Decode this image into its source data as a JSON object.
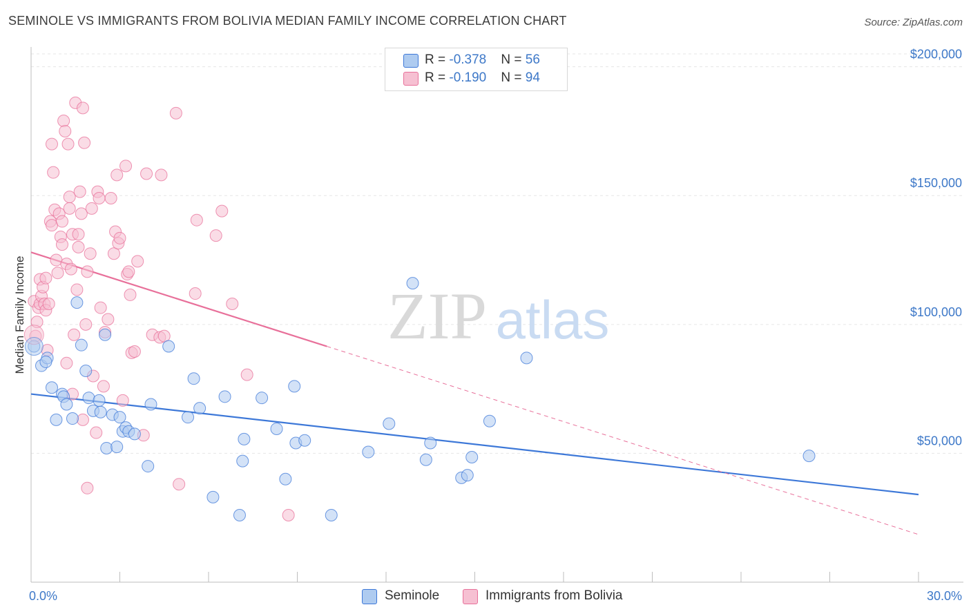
{
  "title": "SEMINOLE VS IMMIGRANTS FROM BOLIVIA MEDIAN FAMILY INCOME CORRELATION CHART",
  "source": "Source: ZipAtlas.com",
  "watermark": {
    "zip": "ZIP",
    "atlas": "atlas"
  },
  "legend": {
    "rows": [
      {
        "r_label": "R = ",
        "r_value": "-0.378",
        "n_label": "N = ",
        "n_value": "56"
      },
      {
        "r_label": "R = ",
        "r_value": "-0.190",
        "n_label": "N = ",
        "n_value": "94"
      }
    ]
  },
  "chart_data": {
    "type": "scatter",
    "title": "SEMINOLE VS IMMIGRANTS FROM BOLIVIA MEDIAN FAMILY INCOME CORRELATION CHART",
    "xlabel": "",
    "ylabel": "Median Family Income",
    "xlim": [
      0,
      30
    ],
    "ylim": [
      0,
      205000
    ],
    "x_tick_labels": [
      "0.0%",
      "30.0%"
    ],
    "y_ticks": [
      50000,
      100000,
      150000,
      200000
    ],
    "y_tick_labels": [
      "$50,000",
      "$100,000",
      "$150,000",
      "$200,000"
    ],
    "grid": true,
    "legend_position": "top-center",
    "colors": {
      "seminole": "#3d78d8",
      "bolivia": "#e8709a",
      "seminole_fill": "#aecbf0",
      "bolivia_fill": "#f6c0d2",
      "axis_text": "#3d78c8"
    },
    "series": [
      {
        "name": "Seminole",
        "r": -0.378,
        "n": 56,
        "trend": {
          "x": [
            0,
            30
          ],
          "y": [
            73000,
            34000
          ],
          "style": "solid"
        },
        "points": [
          [
            0.1,
            91500
          ],
          [
            0.35,
            84000
          ],
          [
            0.55,
            87000
          ],
          [
            0.5,
            85500
          ],
          [
            0.7,
            75500
          ],
          [
            0.85,
            63000
          ],
          [
            1.05,
            73000
          ],
          [
            1.1,
            72000
          ],
          [
            1.2,
            69000
          ],
          [
            1.4,
            63500
          ],
          [
            1.55,
            108500
          ],
          [
            1.7,
            92000
          ],
          [
            1.85,
            82000
          ],
          [
            1.95,
            71500
          ],
          [
            2.1,
            66500
          ],
          [
            2.3,
            70500
          ],
          [
            2.35,
            66000
          ],
          [
            2.5,
            96000
          ],
          [
            2.55,
            52000
          ],
          [
            2.75,
            65000
          ],
          [
            2.9,
            52500
          ],
          [
            3.0,
            64000
          ],
          [
            3.1,
            58500
          ],
          [
            3.2,
            60000
          ],
          [
            3.3,
            58500
          ],
          [
            3.5,
            57500
          ],
          [
            3.95,
            45000
          ],
          [
            4.05,
            69000
          ],
          [
            4.65,
            91500
          ],
          [
            5.3,
            64000
          ],
          [
            5.5,
            79000
          ],
          [
            5.7,
            67500
          ],
          [
            6.15,
            33000
          ],
          [
            6.55,
            72000
          ],
          [
            7.05,
            26000
          ],
          [
            7.15,
            47000
          ],
          [
            7.2,
            55500
          ],
          [
            7.8,
            71500
          ],
          [
            8.3,
            59500
          ],
          [
            8.6,
            40000
          ],
          [
            8.9,
            76000
          ],
          [
            8.95,
            54000
          ],
          [
            9.25,
            55000
          ],
          [
            10.15,
            26000
          ],
          [
            11.4,
            50500
          ],
          [
            12.1,
            61500
          ],
          [
            12.9,
            116000
          ],
          [
            13.35,
            47500
          ],
          [
            13.5,
            54000
          ],
          [
            14.55,
            40500
          ],
          [
            14.75,
            41500
          ],
          [
            14.9,
            48500
          ],
          [
            15.5,
            62500
          ],
          [
            16.75,
            87000
          ],
          [
            26.3,
            49000
          ]
        ]
      },
      {
        "name": "Immigrants from Bolivia",
        "r": -0.19,
        "n": 94,
        "trend": {
          "x": [
            0,
            10
          ],
          "y": [
            128000,
            91500
          ],
          "style": "solid",
          "extend_to": [
            30,
            18500
          ],
          "extend_style": "dashed"
        },
        "points": [
          [
            0.1,
            109000
          ],
          [
            0.15,
            95500
          ],
          [
            0.2,
            101000
          ],
          [
            0.25,
            106500
          ],
          [
            0.3,
            108000
          ],
          [
            0.3,
            117500
          ],
          [
            0.35,
            111000
          ],
          [
            0.4,
            114500
          ],
          [
            0.45,
            108000
          ],
          [
            0.5,
            118000
          ],
          [
            0.5,
            105500
          ],
          [
            0.55,
            90000
          ],
          [
            0.6,
            108000
          ],
          [
            0.65,
            140000
          ],
          [
            0.7,
            170000
          ],
          [
            0.7,
            138500
          ],
          [
            0.75,
            159000
          ],
          [
            0.8,
            144500
          ],
          [
            0.85,
            125000
          ],
          [
            0.9,
            120000
          ],
          [
            0.95,
            143000
          ],
          [
            1.0,
            134000
          ],
          [
            1.05,
            131000
          ],
          [
            1.05,
            140000
          ],
          [
            1.1,
            179000
          ],
          [
            1.15,
            175000
          ],
          [
            1.2,
            123500
          ],
          [
            1.2,
            85000
          ],
          [
            1.25,
            170000
          ],
          [
            1.3,
            149500
          ],
          [
            1.3,
            145000
          ],
          [
            1.35,
            121500
          ],
          [
            1.4,
            135000
          ],
          [
            1.4,
            73000
          ],
          [
            1.45,
            96000
          ],
          [
            1.5,
            186000
          ],
          [
            1.55,
            113500
          ],
          [
            1.6,
            135000
          ],
          [
            1.6,
            130000
          ],
          [
            1.65,
            151500
          ],
          [
            1.7,
            143000
          ],
          [
            1.75,
            63000
          ],
          [
            1.75,
            184000
          ],
          [
            1.8,
            170500
          ],
          [
            1.85,
            100000
          ],
          [
            1.9,
            36500
          ],
          [
            1.9,
            120500
          ],
          [
            2.0,
            127500
          ],
          [
            2.05,
            145000
          ],
          [
            2.1,
            80000
          ],
          [
            2.2,
            58000
          ],
          [
            2.25,
            151500
          ],
          [
            2.3,
            149000
          ],
          [
            2.35,
            106500
          ],
          [
            2.45,
            76000
          ],
          [
            2.5,
            97000
          ],
          [
            2.6,
            102000
          ],
          [
            2.7,
            149000
          ],
          [
            2.8,
            127500
          ],
          [
            2.85,
            136000
          ],
          [
            2.9,
            158000
          ],
          [
            2.95,
            131500
          ],
          [
            3.0,
            133500
          ],
          [
            3.1,
            70500
          ],
          [
            3.2,
            161500
          ],
          [
            3.25,
            119500
          ],
          [
            3.3,
            120500
          ],
          [
            3.35,
            111500
          ],
          [
            3.4,
            89000
          ],
          [
            3.5,
            89500
          ],
          [
            3.6,
            124500
          ],
          [
            3.8,
            57000
          ],
          [
            3.9,
            158500
          ],
          [
            4.1,
            96000
          ],
          [
            4.35,
            95000
          ],
          [
            4.4,
            158000
          ],
          [
            4.5,
            95500
          ],
          [
            4.9,
            182000
          ],
          [
            5.0,
            38000
          ],
          [
            5.55,
            112000
          ],
          [
            5.6,
            140500
          ],
          [
            6.25,
            134500
          ],
          [
            6.45,
            144000
          ],
          [
            6.8,
            108000
          ],
          [
            7.3,
            80500
          ],
          [
            8.7,
            26000
          ]
        ]
      }
    ]
  },
  "bottom_legend": [
    {
      "label": "Seminole"
    },
    {
      "label": "Immigrants from Bolivia"
    }
  ]
}
